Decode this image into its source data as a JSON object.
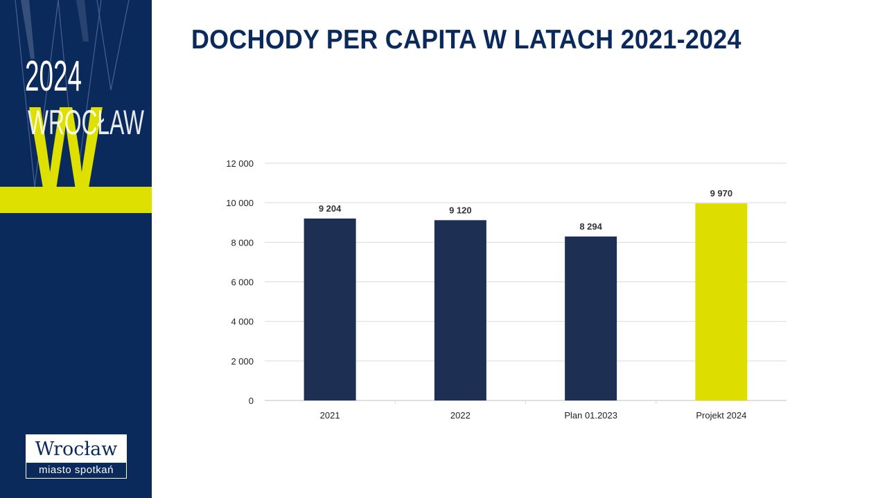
{
  "sidebar": {
    "year_text": "2024",
    "city_text": "WROCŁAW",
    "big_letter": "W",
    "logo_name": "Wrocław",
    "logo_tagline": "miasto spotkań",
    "colors": {
      "navy": "#0b2a5c",
      "accent": "#dde000"
    }
  },
  "title": "DOCHODY PER CAPITA W LATACH 2021-2024",
  "chart_data": {
    "type": "bar",
    "categories": [
      "2021",
      "2022",
      "Plan 01.2023",
      "Projekt 2024"
    ],
    "values": [
      9204,
      9120,
      8294,
      9970
    ],
    "value_labels": [
      "9 204",
      "9 120",
      "8 294",
      "9 970"
    ],
    "bar_colors": [
      "#1d3054",
      "#1d3054",
      "#1d3054",
      "#dddd00"
    ],
    "ylim": [
      0,
      12000
    ],
    "yticks": [
      0,
      2000,
      4000,
      6000,
      8000,
      10000,
      12000
    ],
    "ytick_labels": [
      "0",
      "2 000",
      "4 000",
      "6 000",
      "8 000",
      "10 000",
      "12 000"
    ],
    "grid": true,
    "legend": "none"
  }
}
